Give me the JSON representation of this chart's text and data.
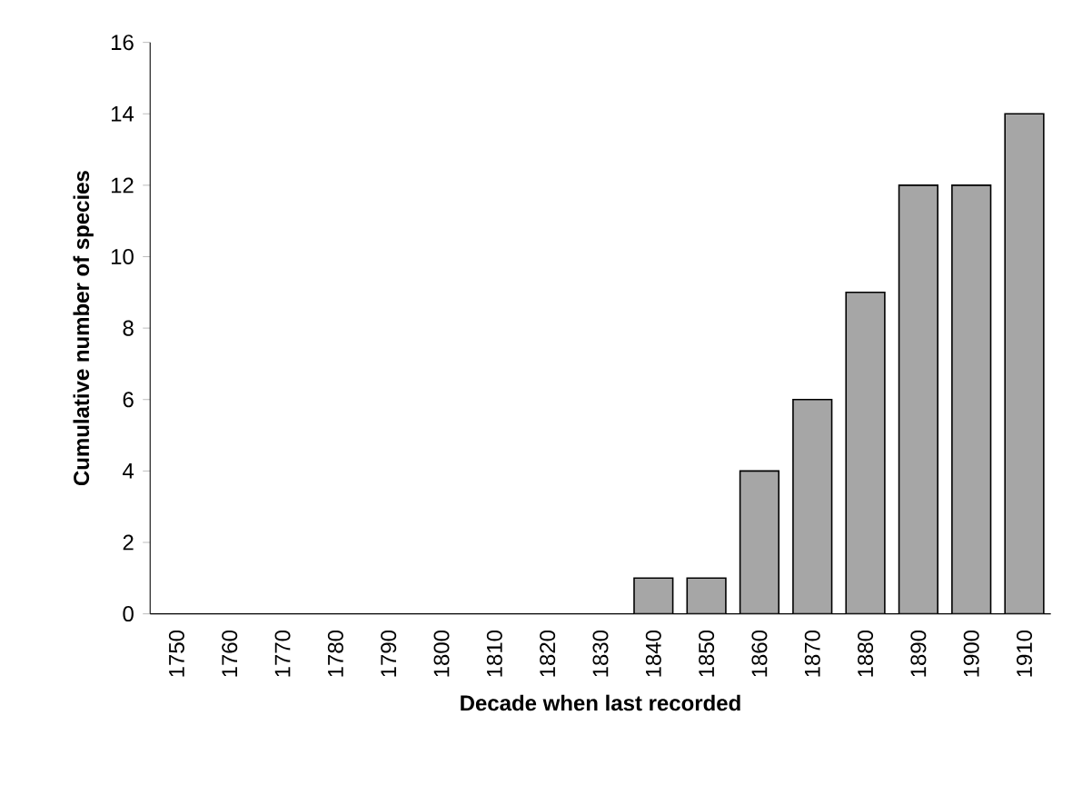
{
  "chart_data": {
    "type": "bar",
    "xlabel": "Decade when last recorded",
    "ylabel": "Cumulative number of species",
    "categories": [
      "1750",
      "1760",
      "1770",
      "1780",
      "1790",
      "1800",
      "1810",
      "1820",
      "1830",
      "1840",
      "1850",
      "1860",
      "1870",
      "1880",
      "1890",
      "1900",
      "1910"
    ],
    "values": [
      0,
      0,
      0,
      0,
      0,
      0,
      0,
      0,
      0,
      1,
      1,
      4,
      6,
      9,
      12,
      12,
      14
    ],
    "color": "#a6a6a6",
    "ylim": [
      0,
      16
    ],
    "yticks": [
      0,
      2,
      4,
      6,
      8,
      10,
      12,
      14,
      16
    ]
  }
}
